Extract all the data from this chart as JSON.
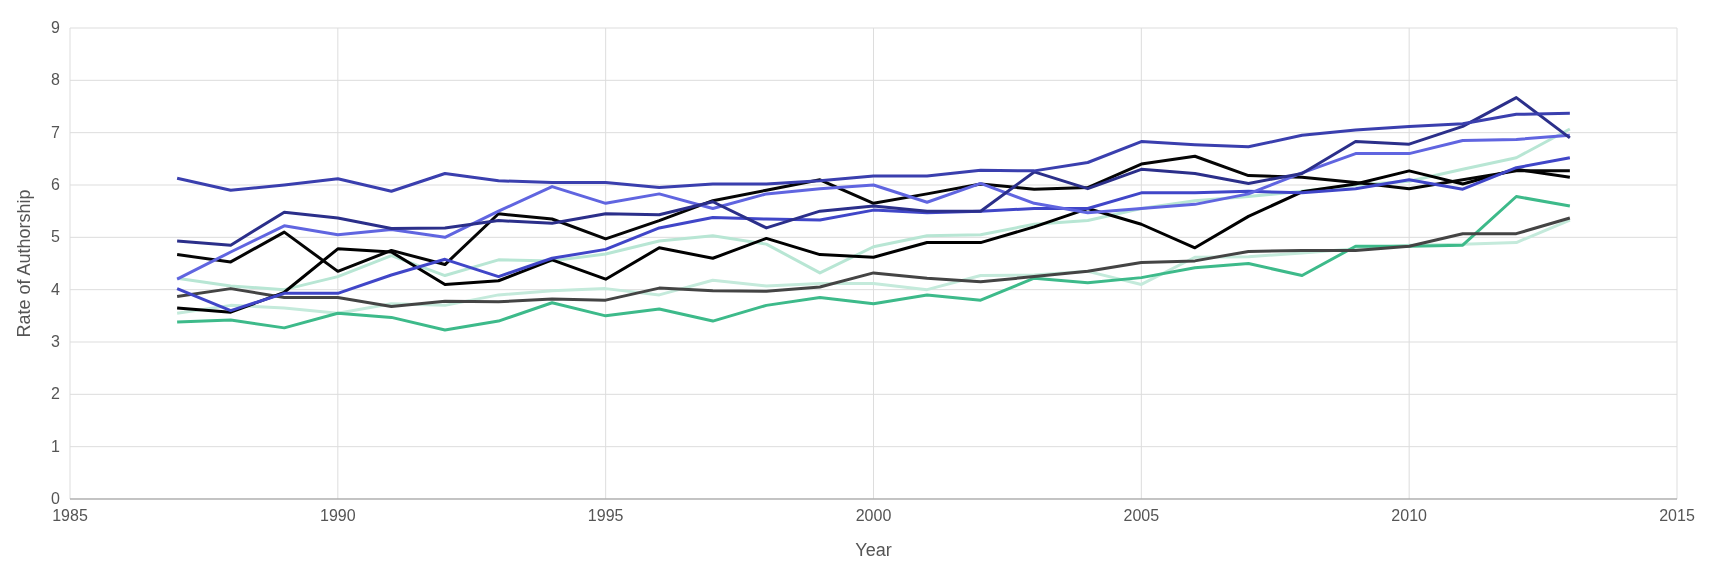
{
  "chart_data": {
    "type": "line",
    "xlabel": "Year",
    "ylabel": "Rate of Authorship",
    "xlim": [
      1985,
      2015
    ],
    "xticks": [
      1985,
      1990,
      1995,
      2000,
      2005,
      2010,
      2015
    ],
    "ylim": [
      0,
      9
    ],
    "yticks": [
      0,
      1,
      2,
      3,
      4,
      5,
      6,
      7,
      8,
      9
    ],
    "grid": true,
    "x": [
      1987,
      1988,
      1989,
      1990,
      1991,
      1992,
      1993,
      1994,
      1995,
      1996,
      1997,
      1998,
      1999,
      2000,
      2001,
      2002,
      2003,
      2004,
      2005,
      2006,
      2007,
      2008,
      2009,
      2010,
      2011,
      2012,
      2013
    ],
    "series": [
      {
        "color": "#b8e6d4",
        "values": [
          4.22,
          4.07,
          4.0,
          4.25,
          4.65,
          4.27,
          4.57,
          4.55,
          4.68,
          4.93,
          5.03,
          4.87,
          4.32,
          4.82,
          5.03,
          5.05,
          5.25,
          5.32,
          5.55,
          5.7,
          5.78,
          5.88,
          6.0,
          6.07,
          6.3,
          6.52,
          7.07
        ]
      },
      {
        "color": "#c4eadb",
        "values": [
          3.55,
          3.7,
          3.65,
          3.55,
          3.73,
          3.7,
          3.9,
          3.98,
          4.02,
          3.9,
          4.18,
          4.07,
          4.12,
          4.12,
          4.0,
          4.27,
          4.28,
          4.35,
          4.1,
          4.62,
          4.63,
          4.7,
          4.78,
          4.85,
          4.87,
          4.9,
          5.33
        ]
      },
      {
        "color": "#3dba8a",
        "values": [
          3.38,
          3.42,
          3.27,
          3.55,
          3.47,
          3.23,
          3.4,
          3.75,
          3.5,
          3.63,
          3.4,
          3.7,
          3.85,
          3.73,
          3.9,
          3.8,
          4.22,
          4.13,
          4.23,
          4.42,
          4.5,
          4.27,
          4.83,
          4.83,
          4.85,
          5.78,
          5.6
        ]
      },
      {
        "color": "#444444",
        "values": [
          3.87,
          4.02,
          3.85,
          3.85,
          3.68,
          3.78,
          3.77,
          3.82,
          3.8,
          4.03,
          3.98,
          3.97,
          4.05,
          4.32,
          4.22,
          4.15,
          4.25,
          4.35,
          4.52,
          4.55,
          4.73,
          4.75,
          4.75,
          4.83,
          5.07,
          5.07,
          5.37
        ]
      },
      {
        "color": "#000000",
        "values": [
          3.65,
          3.57,
          3.95,
          4.78,
          4.72,
          4.1,
          4.17,
          4.57,
          4.2,
          4.8,
          4.6,
          4.98,
          4.67,
          4.62,
          4.9,
          4.9,
          5.2,
          5.55,
          5.25,
          4.8,
          5.4,
          5.87,
          6.02,
          6.27,
          6.02,
          6.3,
          6.15
        ]
      },
      {
        "color": "#050505",
        "values": [
          4.67,
          4.53,
          5.1,
          4.35,
          4.75,
          4.48,
          5.45,
          5.35,
          4.97,
          5.32,
          5.7,
          5.9,
          6.1,
          5.65,
          5.83,
          6.02,
          5.92,
          5.95,
          6.4,
          6.55,
          6.18,
          6.15,
          6.05,
          5.93,
          6.1,
          6.27,
          6.27
        ]
      },
      {
        "color": "#4046c8",
        "values": [
          4.02,
          3.6,
          3.93,
          3.93,
          4.28,
          4.58,
          4.25,
          4.6,
          4.77,
          5.18,
          5.38,
          5.35,
          5.33,
          5.52,
          5.47,
          5.5,
          5.55,
          5.55,
          5.85,
          5.85,
          5.88,
          5.85,
          5.93,
          6.1,
          5.92,
          6.33,
          6.52
        ]
      },
      {
        "color": "#6065e0",
        "values": [
          4.2,
          4.72,
          5.22,
          5.05,
          5.15,
          5.0,
          5.5,
          5.97,
          5.65,
          5.83,
          5.55,
          5.83,
          5.93,
          6.0,
          5.67,
          6.03,
          5.65,
          5.47,
          5.55,
          5.63,
          5.83,
          6.23,
          6.6,
          6.6,
          6.85,
          6.87,
          6.95
        ]
      },
      {
        "color": "#2b2f8a",
        "values": [
          4.93,
          4.85,
          5.48,
          5.37,
          5.17,
          5.18,
          5.32,
          5.27,
          5.45,
          5.43,
          5.68,
          5.18,
          5.5,
          5.6,
          5.5,
          5.5,
          6.25,
          5.93,
          6.3,
          6.22,
          6.03,
          6.22,
          6.83,
          6.78,
          7.12,
          7.67,
          6.9
        ]
      },
      {
        "color": "#3a3fae",
        "values": [
          6.13,
          5.9,
          6.0,
          6.12,
          5.88,
          6.22,
          6.08,
          6.05,
          6.05,
          5.95,
          6.02,
          6.02,
          6.08,
          6.17,
          6.17,
          6.28,
          6.27,
          6.43,
          6.83,
          6.77,
          6.73,
          6.95,
          7.05,
          7.12,
          7.17,
          7.35,
          7.37
        ]
      }
    ]
  }
}
